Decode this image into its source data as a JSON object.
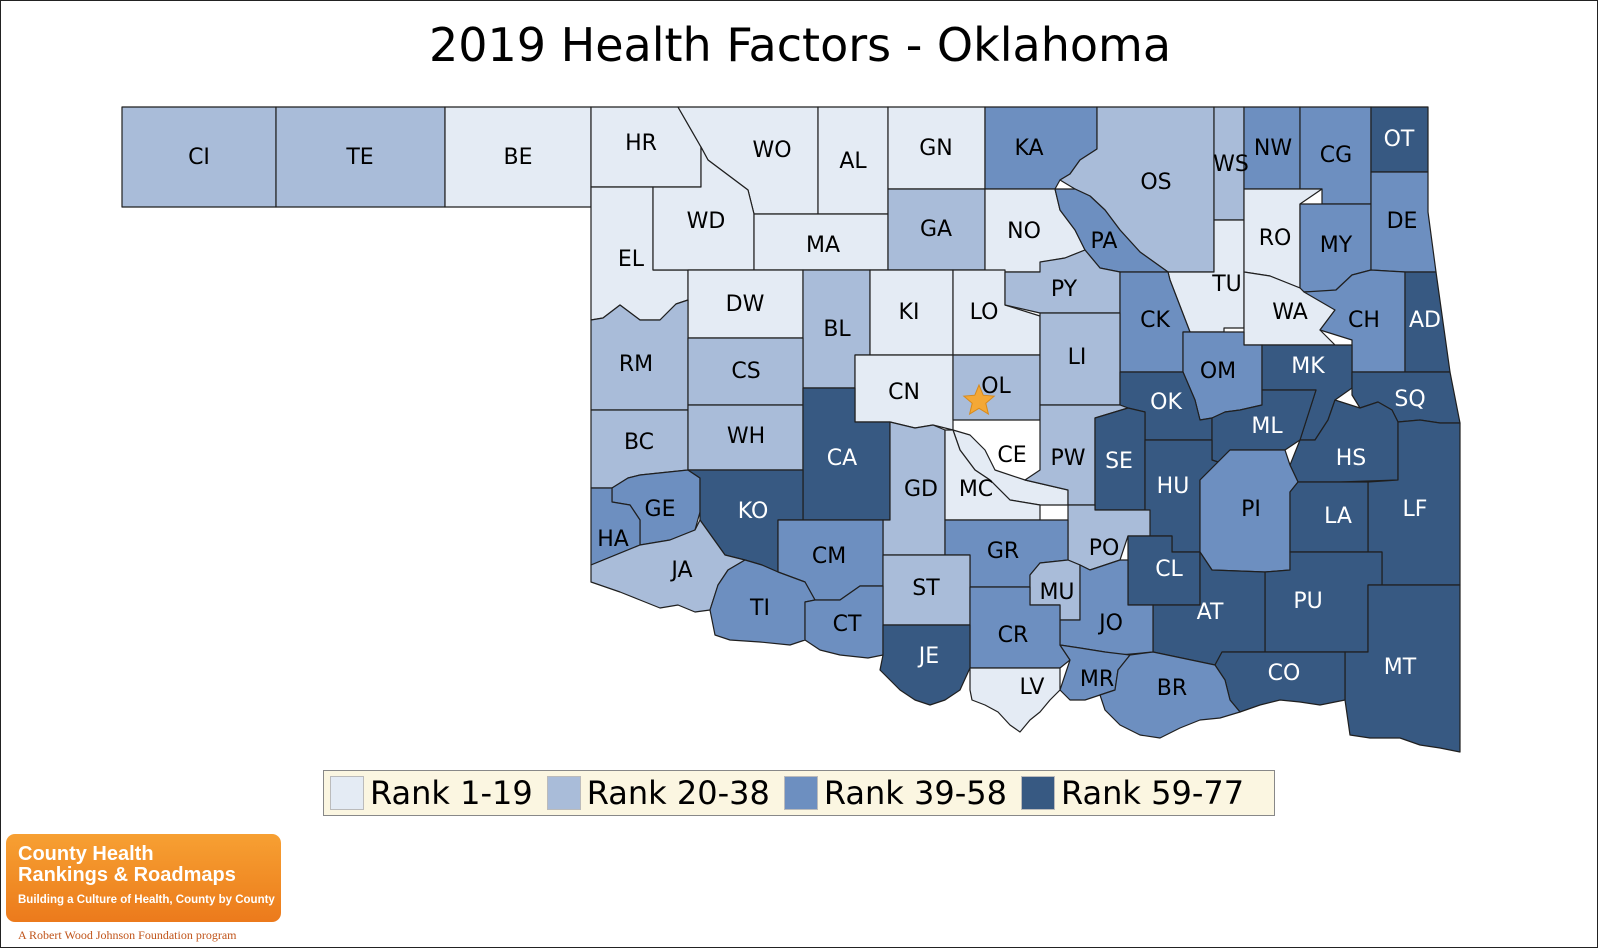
{
  "title": "2019 Health Factors - Oklahoma",
  "colors": {
    "rank_1_19": "#e4ebf4",
    "rank_20_38": "#a9bcd9",
    "rank_39_58": "#6d8fc0",
    "rank_59_77": "#375982",
    "star": "#f4a836",
    "label_dark": "#000000",
    "label_light": "#ffffff"
  },
  "legend": [
    {
      "label": "Rank 1-19",
      "color": "#e4ebf4"
    },
    {
      "label": "Rank 20-38",
      "color": "#a9bcd9"
    },
    {
      "label": "Rank 39-58",
      "color": "#6d8fc0"
    },
    {
      "label": "Rank 59-77",
      "color": "#375982"
    }
  ],
  "counties": [
    {
      "code": "CI",
      "rank_group": "Rank 20-38"
    },
    {
      "code": "TE",
      "rank_group": "Rank 20-38"
    },
    {
      "code": "BE",
      "rank_group": "Rank 1-19"
    },
    {
      "code": "HR",
      "rank_group": "Rank 1-19"
    },
    {
      "code": "WO",
      "rank_group": "Rank 1-19"
    },
    {
      "code": "AL",
      "rank_group": "Rank 1-19"
    },
    {
      "code": "GN",
      "rank_group": "Rank 1-19"
    },
    {
      "code": "KA",
      "rank_group": "Rank 39-58"
    },
    {
      "code": "OS",
      "rank_group": "Rank 20-38"
    },
    {
      "code": "WS",
      "rank_group": "Rank 20-38"
    },
    {
      "code": "NW",
      "rank_group": "Rank 39-58"
    },
    {
      "code": "CG",
      "rank_group": "Rank 39-58"
    },
    {
      "code": "OT",
      "rank_group": "Rank 59-77"
    },
    {
      "code": "EL",
      "rank_group": "Rank 1-19"
    },
    {
      "code": "WD",
      "rank_group": "Rank 1-19"
    },
    {
      "code": "MA",
      "rank_group": "Rank 1-19"
    },
    {
      "code": "GA",
      "rank_group": "Rank 20-38"
    },
    {
      "code": "NO",
      "rank_group": "Rank 1-19"
    },
    {
      "code": "PA",
      "rank_group": "Rank 39-58"
    },
    {
      "code": "TU",
      "rank_group": "Rank 1-19"
    },
    {
      "code": "RO",
      "rank_group": "Rank 1-19"
    },
    {
      "code": "MY",
      "rank_group": "Rank 39-58"
    },
    {
      "code": "DE",
      "rank_group": "Rank 39-58"
    },
    {
      "code": "DW",
      "rank_group": "Rank 1-19"
    },
    {
      "code": "KI",
      "rank_group": "Rank 1-19"
    },
    {
      "code": "LO",
      "rank_group": "Rank 1-19"
    },
    {
      "code": "PY",
      "rank_group": "Rank 20-38"
    },
    {
      "code": "CK",
      "rank_group": "Rank 39-58"
    },
    {
      "code": "WA",
      "rank_group": "Rank 1-19"
    },
    {
      "code": "CH",
      "rank_group": "Rank 39-58"
    },
    {
      "code": "AD",
      "rank_group": "Rank 59-77"
    },
    {
      "code": "RM",
      "rank_group": "Rank 20-38"
    },
    {
      "code": "BL",
      "rank_group": "Rank 20-38"
    },
    {
      "code": "CS",
      "rank_group": "Rank 20-38"
    },
    {
      "code": "CN",
      "rank_group": "Rank 1-19"
    },
    {
      "code": "OL",
      "rank_group": "Rank 20-38"
    },
    {
      "code": "LI",
      "rank_group": "Rank 20-38"
    },
    {
      "code": "OM",
      "rank_group": "Rank 39-58"
    },
    {
      "code": "MK",
      "rank_group": "Rank 59-77"
    },
    {
      "code": "OK",
      "rank_group": "Rank 59-77"
    },
    {
      "code": "SQ",
      "rank_group": "Rank 59-77"
    },
    {
      "code": "BC",
      "rank_group": "Rank 20-38"
    },
    {
      "code": "WH",
      "rank_group": "Rank 20-38"
    },
    {
      "code": "CA",
      "rank_group": "Rank 59-77"
    },
    {
      "code": "CE",
      "rank_group": "Rank 1-19"
    },
    {
      "code": "PW",
      "rank_group": "Rank 20-38"
    },
    {
      "code": "SE",
      "rank_group": "Rank 59-77"
    },
    {
      "code": "ML",
      "rank_group": "Rank 59-77"
    },
    {
      "code": "HS",
      "rank_group": "Rank 59-77"
    },
    {
      "code": "HU",
      "rank_group": "Rank 59-77"
    },
    {
      "code": "GD",
      "rank_group": "Rank 20-38"
    },
    {
      "code": "MC",
      "rank_group": "Rank 1-19"
    },
    {
      "code": "GE",
      "rank_group": "Rank 39-58"
    },
    {
      "code": "KO",
      "rank_group": "Rank 59-77"
    },
    {
      "code": "PI",
      "rank_group": "Rank 39-58"
    },
    {
      "code": "LF",
      "rank_group": "Rank 59-77"
    },
    {
      "code": "LA",
      "rank_group": "Rank 59-77"
    },
    {
      "code": "HA",
      "rank_group": "Rank 39-58"
    },
    {
      "code": "PO",
      "rank_group": "Rank 20-38"
    },
    {
      "code": "CM",
      "rank_group": "Rank 39-58"
    },
    {
      "code": "GR",
      "rank_group": "Rank 39-58"
    },
    {
      "code": "JA",
      "rank_group": "Rank 20-38"
    },
    {
      "code": "CL",
      "rank_group": "Rank 59-77"
    },
    {
      "code": "ST",
      "rank_group": "Rank 20-38"
    },
    {
      "code": "MU",
      "rank_group": "Rank 20-38"
    },
    {
      "code": "PU",
      "rank_group": "Rank 59-77"
    },
    {
      "code": "AT",
      "rank_group": "Rank 59-77"
    },
    {
      "code": "TI",
      "rank_group": "Rank 39-58"
    },
    {
      "code": "CT",
      "rank_group": "Rank 39-58"
    },
    {
      "code": "JO",
      "rank_group": "Rank 39-58"
    },
    {
      "code": "CR",
      "rank_group": "Rank 39-58"
    },
    {
      "code": "JE",
      "rank_group": "Rank 59-77"
    },
    {
      "code": "MT",
      "rank_group": "Rank 59-77"
    },
    {
      "code": "CO",
      "rank_group": "Rank 59-77"
    },
    {
      "code": "MR",
      "rank_group": "Rank 39-58"
    },
    {
      "code": "LV",
      "rank_group": "Rank 1-19"
    },
    {
      "code": "BR",
      "rank_group": "Rank 39-58"
    }
  ],
  "capital_marker": {
    "county": "OL",
    "icon": "star-icon"
  },
  "logo": {
    "line1": "County Health",
    "line2": "Rankings & Roadmaps",
    "tagline": "Building a Culture of Health, County by County",
    "foundation": "A Robert Wood Johnson Foundation program"
  }
}
